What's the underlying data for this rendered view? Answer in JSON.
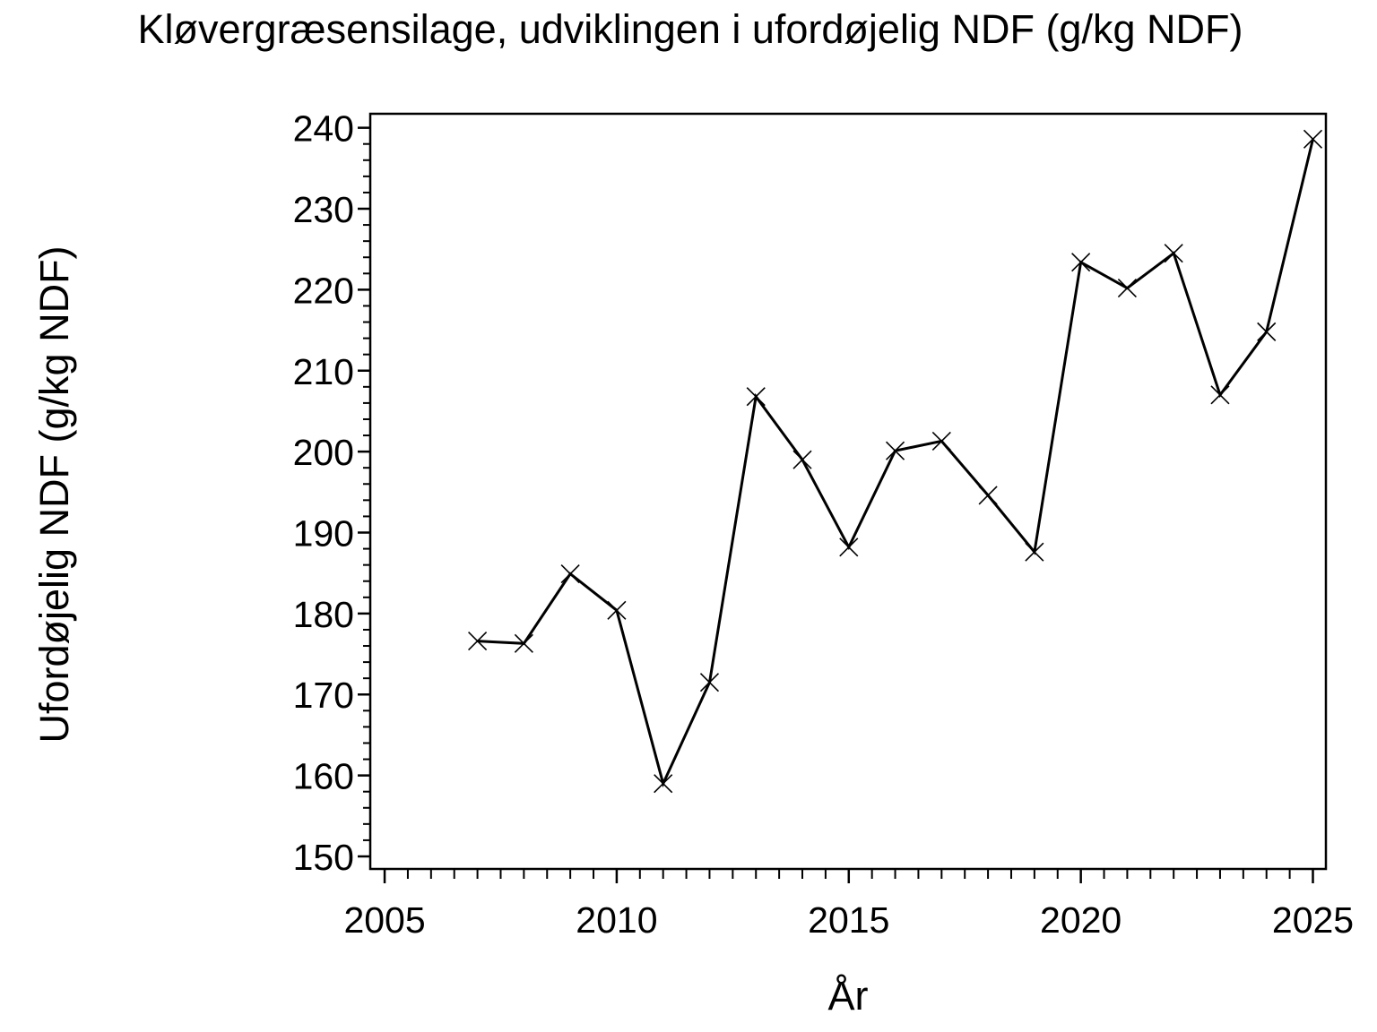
{
  "page": {
    "background": "#ffffff",
    "foreground": "#000000"
  },
  "chart_data": {
    "type": "line",
    "title": "Kløvergræsensilage, udviklingen i ufordøjelig NDF (g/kg NDF)",
    "xlabel": "År",
    "ylabel": "Ufordøjelig NDF (g/kg NDF)",
    "x": [
      2007,
      2008,
      2009,
      2010,
      2011,
      2012,
      2013,
      2014,
      2015,
      2016,
      2017,
      2018,
      2019,
      2020,
      2021,
      2022,
      2023,
      2024,
      2025
    ],
    "series": [
      {
        "name": "Ufordøjelig NDF (g/kg NDF)",
        "values": [
          176.6,
          176.3,
          184.9,
          180.4,
          159.0,
          171.5,
          206.8,
          199.0,
          188.2,
          200.1,
          201.3,
          194.6,
          187.6,
          223.4,
          220.2,
          224.5,
          207.0,
          214.8,
          238.6
        ]
      }
    ],
    "xlim": [
      2004.69,
      2025.28
    ],
    "ylim": [
      148.45,
      241.73
    ],
    "x_major_ticks": [
      2005,
      2010,
      2015,
      2020,
      2025
    ],
    "x_minor_step": 0.5,
    "y_major_ticks": [
      150,
      160,
      170,
      180,
      190,
      200,
      210,
      220,
      230,
      240
    ],
    "y_minor_step": 2,
    "grid": false,
    "legend": false,
    "frame": true,
    "marker": "x",
    "line_color": "#000000",
    "marker_color": "#000000",
    "axis_color": "#000000",
    "background": "#ffffff"
  }
}
